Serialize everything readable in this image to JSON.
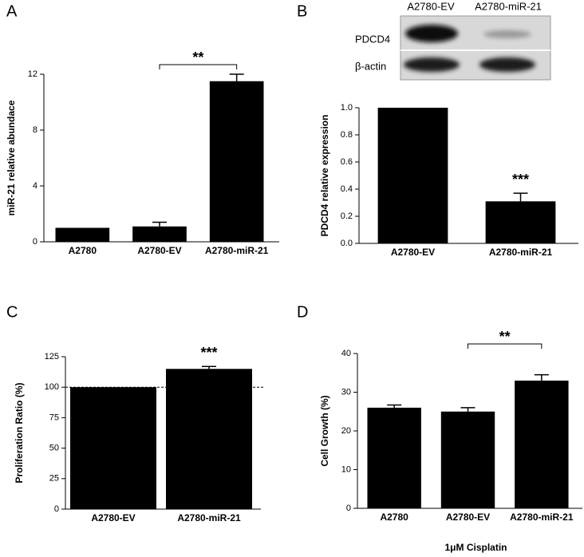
{
  "chart_data": [
    {
      "type": "bar",
      "panel": "A",
      "ylabel": "miR-21 relative abundace",
      "categories": [
        "A2780",
        "A2780-EV",
        "A2780-miR-21"
      ],
      "values": [
        1.0,
        1.1,
        11.5
      ],
      "errors": [
        null,
        0.3,
        0.5
      ],
      "color": "#000000",
      "ylim": [
        0,
        12
      ],
      "yticks": [
        0,
        4,
        8,
        12
      ],
      "annotation": "**",
      "bracket": [
        1,
        2
      ]
    },
    {
      "type": "bar",
      "panel": "B",
      "ylabel": "PDCD4 relative expression",
      "blot_lanes": [
        "A2780-EV",
        "A2780-miR-21"
      ],
      "blot_rows": [
        "PDCD4",
        "β-actin"
      ],
      "categories": [
        "A2780-EV",
        "A2780-miR-21"
      ],
      "values": [
        1.0,
        0.31
      ],
      "errors": [
        null,
        0.06
      ],
      "color": "#000000",
      "ylim": [
        0,
        1.0
      ],
      "yticks": [
        {
          "value": 0,
          "label": "0.0"
        },
        0.2,
        0.4,
        0.6,
        0.8,
        {
          "value": 1,
          "label": "1.0"
        }
      ],
      "annotation": "***"
    },
    {
      "type": "bar",
      "panel": "C",
      "ylabel": "Proliferation Ratio (%)",
      "categories": [
        "A2780-EV",
        "A2780-miR-21"
      ],
      "values": [
        100,
        115
      ],
      "errors": [
        null,
        2
      ],
      "color": "#000000",
      "ylim": [
        0,
        125
      ],
      "yticks": [
        0,
        25,
        50,
        75,
        100,
        125
      ],
      "reference_line": 100,
      "annotation": "***"
    },
    {
      "type": "bar",
      "panel": "D",
      "ylabel": "Cell Growth (%)",
      "xlabel": "1μM Cisplatin",
      "categories": [
        "A2780",
        "A2780-EV",
        "A2780-miR-21"
      ],
      "values": [
        26,
        25,
        33
      ],
      "errors": [
        0.7,
        1.0,
        1.5
      ],
      "color": "#000000",
      "ylim": [
        0,
        40
      ],
      "yticks": [
        0,
        10,
        20,
        30,
        40
      ],
      "annotation": "**",
      "bracket": [
        1,
        2
      ]
    }
  ]
}
